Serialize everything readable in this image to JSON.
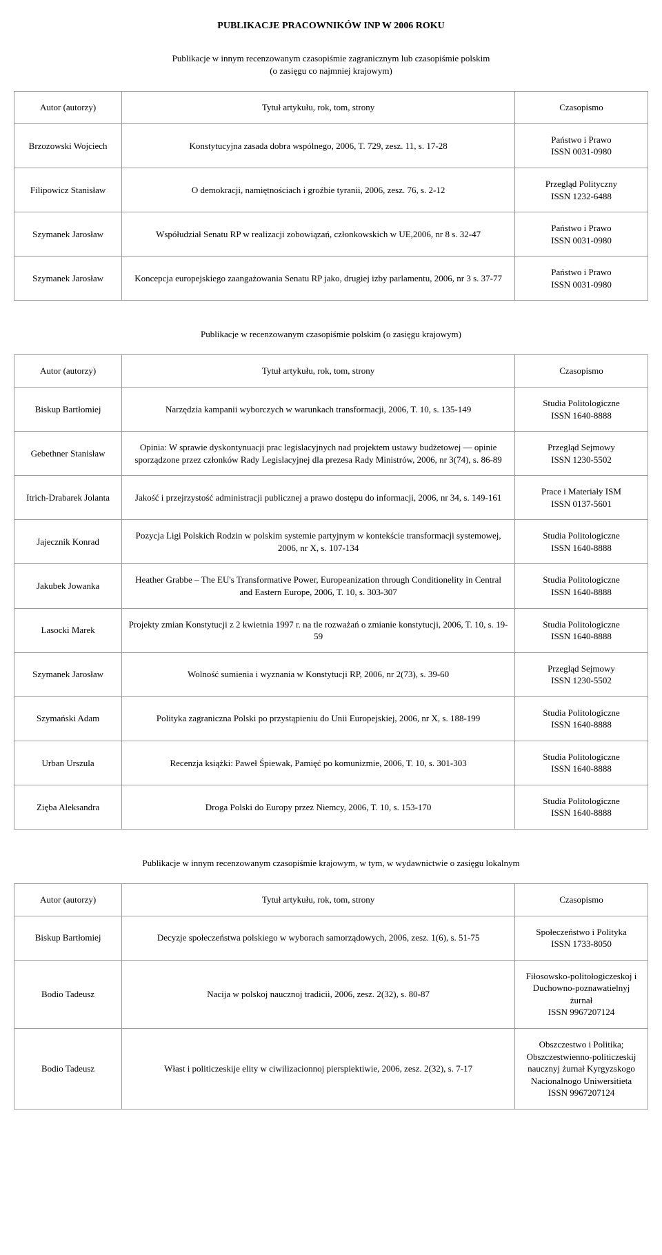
{
  "main_title": "PUBLIKACJE PRACOWNIKÓW INP W 2006 ROKU",
  "section1": {
    "subtitle_line1": "Publikacje w innym recenzowanym czasopiśmie zagranicznym lub czasopiśmie polskim",
    "subtitle_line2": "(o zasięgu co najmniej krajowym)",
    "headers": {
      "author": "Autor (autorzy)",
      "title": "Tytuł artykułu, rok, tom, strony",
      "journal": "Czasopismo"
    },
    "rows": [
      {
        "author": "Brzozowski Wojciech",
        "title": "Konstytucyjna zasada dobra wspólnego, 2006, T. 729, zesz. 11, s. 17-28",
        "journal": "Państwo i Prawo\nISSN 0031-0980"
      },
      {
        "author": "Filipowicz Stanisław",
        "title": "O demokracji, namiętnościach i groźbie tyranii, 2006, zesz. 76, s. 2-12",
        "journal": "Przegląd Polityczny\nISSN 1232-6488"
      },
      {
        "author": "Szymanek Jarosław",
        "title": "Współudział Senatu RP w realizacji zobowiązań, członkowskich w UE,2006, nr 8 s. 32-47",
        "journal": "Państwo i Prawo\nISSN 0031-0980"
      },
      {
        "author": "Szymanek Jarosław",
        "title": "Koncepcja europejskiego zaangażowania Senatu RP jako, drugiej izby parlamentu, 2006,  nr 3 s. 37-77",
        "journal": "Państwo i Prawo\nISSN 0031-0980"
      }
    ]
  },
  "section2": {
    "subtitle": "Publikacje w recenzowanym czasopiśmie polskim (o zasięgu krajowym)",
    "headers": {
      "author": "Autor (autorzy)",
      "title": "Tytuł artykułu, rok, tom, strony",
      "journal": "Czasopismo"
    },
    "rows": [
      {
        "author": "Biskup Bartłomiej",
        "title": "Narzędzia kampanii wyborczych w warunkach transformacji, 2006, T. 10, s. 135-149",
        "journal": "Studia Politologiczne\nISSN 1640-8888"
      },
      {
        "author": "Gebethner Stanisław",
        "title": "Opinia: W sprawie dyskontynuacji prac legislacyjnych nad projektem ustawy budżetowej — opinie sporządzone przez członków Rady Legislacyjnej dla prezesa Rady Ministrów, 2006, nr 3(74), s. 86-89",
        "journal": "Przegląd Sejmowy\nISSN 1230-5502"
      },
      {
        "author": "Itrich-Drabarek Jolanta",
        "title": "Jakość i przejrzystość administracji publicznej a prawo dostępu do informacji, 2006, nr 34, s. 149-161",
        "journal": "Prace i Materiały ISM\nISSN 0137-5601"
      },
      {
        "author": "Jajecznik Konrad",
        "title": "Pozycja Ligi Polskich Rodzin w polskim systemie partyjnym w kontekście transformacji systemowej, 2006, nr X, s. 107-134",
        "journal": "Studia Politologiczne\nISSN 1640-8888"
      },
      {
        "author": "Jakubek Jowanka",
        "title": "Heather Grabbe – The EU's Transformative Power, Europeanization through Conditionelity in Central and Eastern Europe, 2006, T. 10, s. 303-307",
        "journal": "Studia Politologiczne\nISSN 1640-8888"
      },
      {
        "author": "Lasocki Marek",
        "title": "Projekty zmian Konstytucji z 2 kwietnia 1997 r. na tle rozważań o zmianie konstytucji, 2006, T. 10, s. 19-59",
        "journal": "Studia Politologiczne\nISSN 1640-8888"
      },
      {
        "author": "Szymanek Jarosław",
        "title": "Wolność sumienia i wyznania w Konstytucji RP, 2006, nr 2(73), s. 39-60",
        "journal": "Przegląd Sejmowy\nISSN 1230-5502"
      },
      {
        "author": "Szymański Adam",
        "title": "Polityka zagraniczna Polski po przystąpieniu do Unii Europejskiej, 2006, nr X, s. 188-199",
        "journal": "Studia Politologiczne\nISSN 1640-8888"
      },
      {
        "author": "Urban Urszula",
        "title": "Recenzja książki: Paweł Śpiewak, Pamięć po komunizmie, 2006, T. 10, s. 301-303",
        "journal": "Studia Politologiczne\nISSN 1640-8888"
      },
      {
        "author": "Zięba Aleksandra",
        "title": "Droga Polski do Europy przez Niemcy, 2006, T. 10, s. 153-170",
        "journal": "Studia Politologiczne\nISSN 1640-8888"
      }
    ]
  },
  "section3": {
    "subtitle": "Publikacje w innym recenzowanym czasopiśmie krajowym, w tym, w wydawnictwie o zasięgu lokalnym",
    "headers": {
      "author": "Autor (autorzy)",
      "title": "Tytuł artykułu, rok, tom, strony",
      "journal": "Czasopismo"
    },
    "rows": [
      {
        "author": "Biskup Bartłomiej",
        "title": "Decyzje społeczeństwa polskiego w wyborach samorządowych, 2006, zesz. 1(6), s. 51-75",
        "journal": "Społeczeństwo i Polityka\nISSN 1733-8050"
      },
      {
        "author": "Bodio Tadeusz",
        "title": "Nacija w polskoj naucznoj tradicii, 2006, zesz. 2(32), s. 80-87",
        "journal": "Fiłosowsko-politołogiczeskoj i Duchowno-poznawatielnyj żurnał\nISSN 9967207124"
      },
      {
        "author": "Bodio Tadeusz",
        "title": "Włast i politiczeskije elity w ciwilizacionnoj pierspiektiwie, 2006, zesz. 2(32), s. 7-17",
        "journal": "Obszczestwo i Politika; Obszczestwienno-politiczeskij naucznyj żurnał Kyrgyzskogo Nacionalnogo Uniwersitieta\nISSN 9967207124"
      }
    ]
  }
}
